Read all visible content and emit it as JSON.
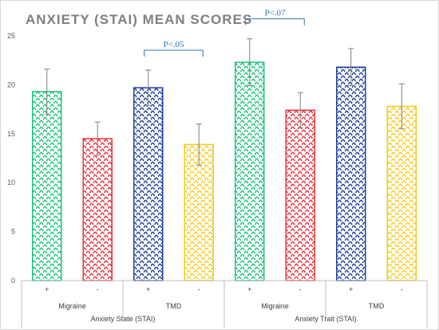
{
  "chart_data": {
    "type": "bar",
    "title": "ANXIETY (STAI) MEAN SCORES",
    "ylim": [
      0,
      25
    ],
    "yticks": [
      0,
      5,
      10,
      15,
      20,
      25
    ],
    "grid": false,
    "legend": "none",
    "bars": [
      {
        "sign": "+",
        "value": 19.3,
        "error": 2.3,
        "color": "#1ec37a",
        "pattern": "scale"
      },
      {
        "sign": "-",
        "value": 14.5,
        "error": 1.7,
        "color": "#e8323c",
        "pattern": "scale"
      },
      {
        "sign": "+",
        "value": 19.7,
        "error": 1.8,
        "color": "#1f3f9a",
        "pattern": "scale"
      },
      {
        "sign": "-",
        "value": 13.9,
        "error": 2.1,
        "color": "#f3cc1e",
        "pattern": "scale"
      },
      {
        "sign": "+",
        "value": 22.3,
        "error": 2.4,
        "color": "#1ec37a",
        "pattern": "scale"
      },
      {
        "sign": "-",
        "value": 17.4,
        "error": 1.8,
        "color": "#e8323c",
        "pattern": "scale"
      },
      {
        "sign": "+",
        "value": 21.8,
        "error": 1.9,
        "color": "#1f3f9a",
        "pattern": "scale"
      },
      {
        "sign": "-",
        "value": 17.8,
        "error": 2.3,
        "color": "#f3cc1e",
        "pattern": "scale"
      }
    ],
    "subgroups": [
      "Migraine",
      "TMD",
      "Migraine",
      "TMD"
    ],
    "groups": [
      "Anxiety State (STAI)",
      "Anxiety Trait (STAI)"
    ],
    "annotations": [
      {
        "label": "P<.05",
        "from_bar": 2,
        "to_bar": 3
      },
      {
        "label": "P<.07",
        "from_bar": 4,
        "to_bar": 5
      }
    ]
  }
}
